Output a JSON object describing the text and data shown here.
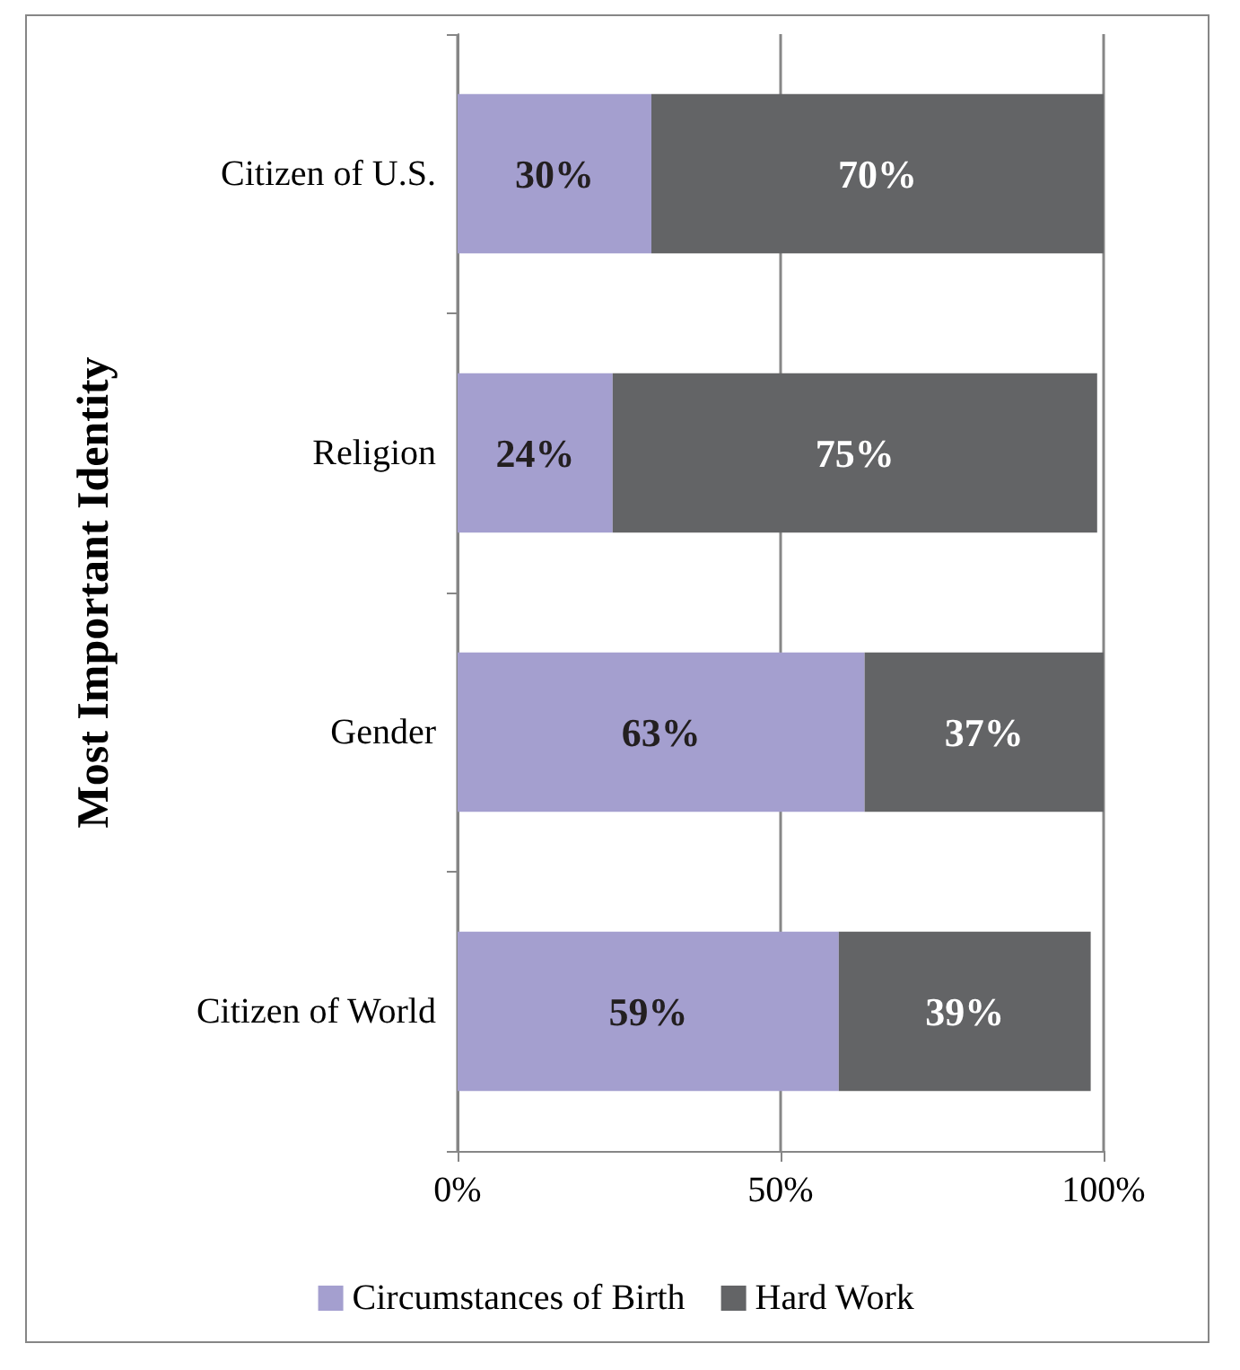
{
  "chart_data": {
    "type": "bar",
    "orientation": "horizontal",
    "stacked": true,
    "ylabel": "Most Important Identity",
    "categories": [
      "Citizen of U.S.",
      "Religion",
      "Gender",
      "Citizen of World"
    ],
    "series": [
      {
        "name": "Circumstances of Birth",
        "color": "#a49fcf",
        "values": [
          30,
          24,
          63,
          59
        ],
        "value_labels": [
          "30%",
          "24%",
          "63%",
          "59%"
        ]
      },
      {
        "name": "Hard Work",
        "color": "#636466",
        "values": [
          70,
          75,
          37,
          39
        ],
        "value_labels": [
          "70%",
          "75%",
          "37%",
          "39%"
        ]
      }
    ],
    "xlim": [
      0,
      100
    ],
    "xticks": [
      {
        "value": 0,
        "label": "0%"
      },
      {
        "value": 50,
        "label": "50%"
      },
      {
        "value": 100,
        "label": "100%"
      }
    ],
    "grid": "x",
    "legend": "bottom"
  }
}
